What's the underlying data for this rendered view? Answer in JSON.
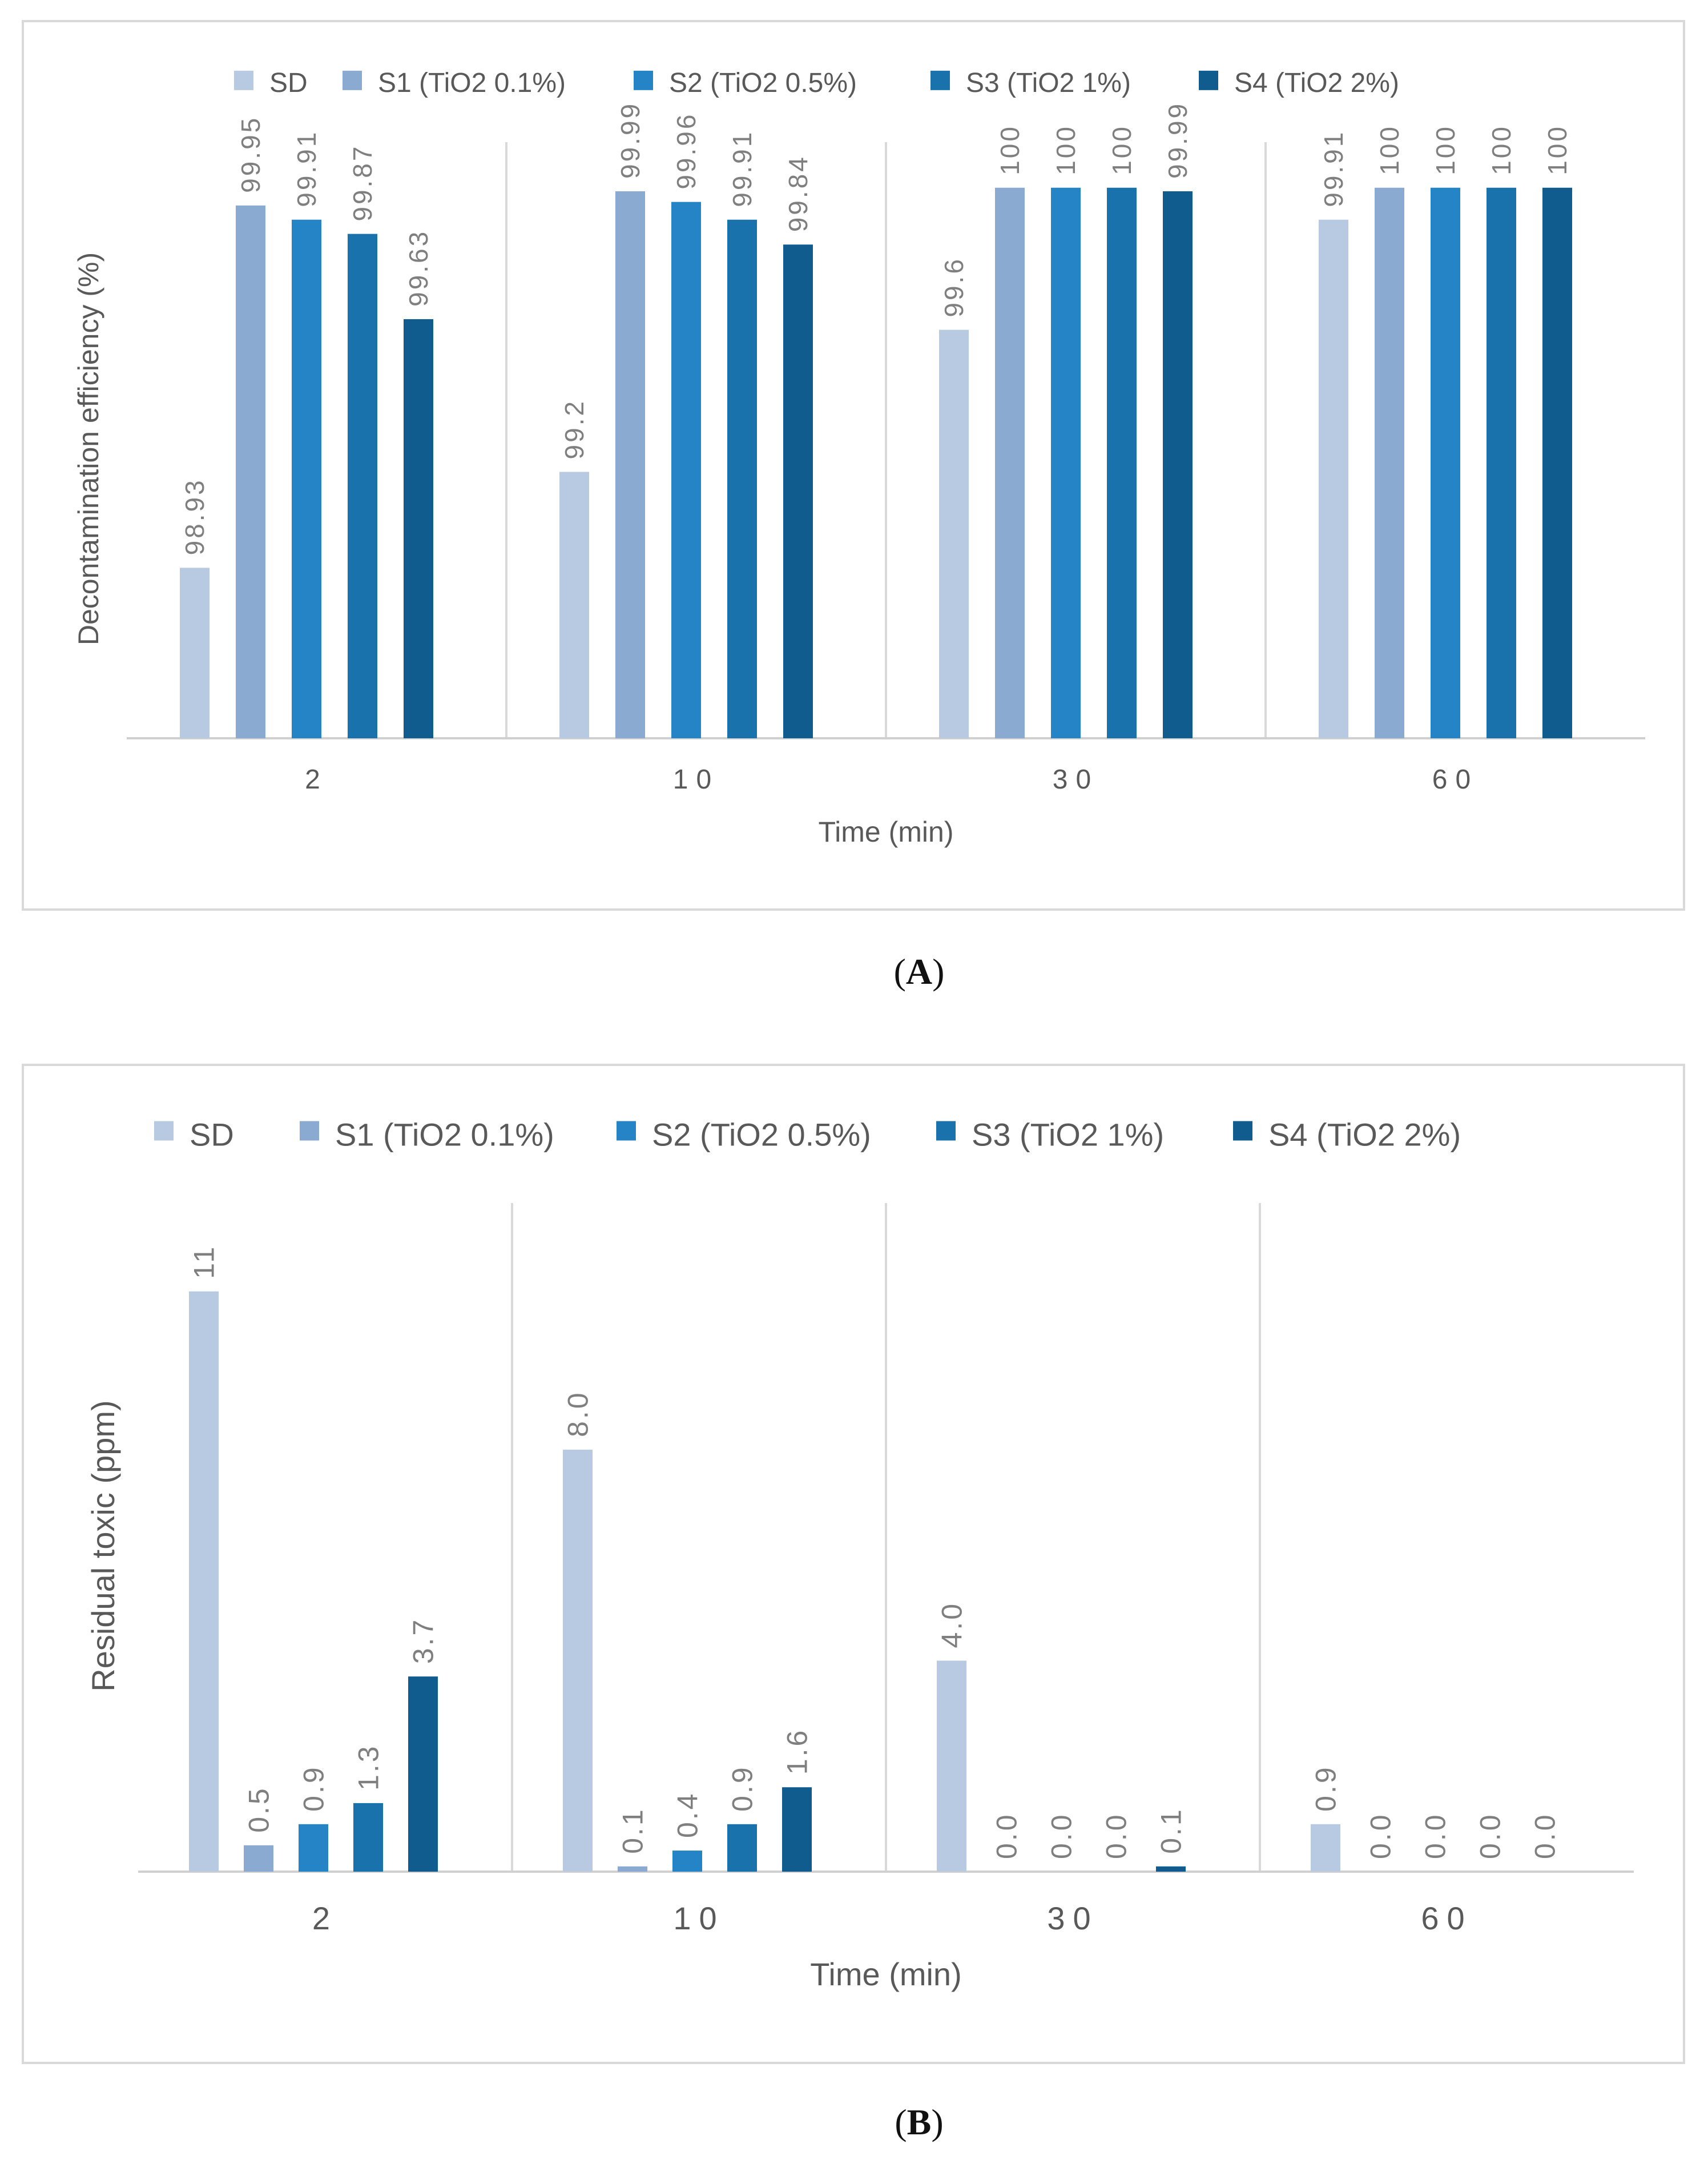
{
  "series_colors": [
    "#b8cae2",
    "#8aaad2",
    "#2584c6",
    "#1a72ad",
    "#105c8e"
  ],
  "chart_data": [
    {
      "panel": "A",
      "caption_letter": "A",
      "type": "bar",
      "categories": [
        "2",
        "10",
        "30",
        "60"
      ],
      "xlabel": "Time (min)",
      "ylabel": "Decontamination efficiency (%)",
      "ylim": [
        98.45,
        100.08
      ],
      "gridlines": "vertical category separators",
      "legend_position": "top",
      "series": [
        {
          "name": "SD",
          "values": [
            98.93,
            99.2,
            99.6,
            99.91
          ],
          "labels": [
            "98.93",
            "99.2",
            "99.6",
            "99.91"
          ]
        },
        {
          "name": "S1 (TiO2 0.1%)",
          "values": [
            99.95,
            99.99,
            100,
            100
          ],
          "labels": [
            "99.95",
            "99.99",
            "100",
            "100"
          ]
        },
        {
          "name": "S2 (TiO2 0.5%)",
          "values": [
            99.91,
            99.96,
            100,
            100
          ],
          "labels": [
            "99.91",
            "99.96",
            "100",
            "100"
          ]
        },
        {
          "name": "S3 (TiO2 1%)",
          "values": [
            99.87,
            99.91,
            100,
            100
          ],
          "labels": [
            "99.87",
            "99.91",
            "100",
            "100"
          ]
        },
        {
          "name": "S4 (TiO2 2%)",
          "values": [
            99.63,
            99.84,
            99.99,
            100
          ],
          "labels": [
            "99.63",
            "99.84",
            "99.99",
            "100"
          ]
        }
      ]
    },
    {
      "panel": "B",
      "caption_letter": "B",
      "type": "bar",
      "categories": [
        "2",
        "10",
        "30",
        "60"
      ],
      "xlabel": "Time (min)",
      "ylabel": "Residual toxic (ppm)",
      "ylim": [
        0,
        12.35
      ],
      "gridlines": "vertical category separators",
      "legend_position": "top",
      "series": [
        {
          "name": "SD",
          "values": [
            11,
            8.0,
            4.0,
            0.9
          ],
          "labels": [
            "11",
            "8.0",
            "4.0",
            "0.9"
          ]
        },
        {
          "name": "S1 (TiO2 0.1%)",
          "values": [
            0.5,
            0.1,
            0.0,
            0.0
          ],
          "labels": [
            "0.5",
            "0.1",
            "0.0",
            "0.0"
          ]
        },
        {
          "name": "S2 (TiO2 0.5%)",
          "values": [
            0.9,
            0.4,
            0.0,
            0.0
          ],
          "labels": [
            "0.9",
            "0.4",
            "0.0",
            "0.0"
          ]
        },
        {
          "name": "S3 (TiO2 1%)",
          "values": [
            1.3,
            0.9,
            0.0,
            0.0
          ],
          "labels": [
            "1.3",
            "0.9",
            "0.0",
            "0.0"
          ]
        },
        {
          "name": "S4 (TiO2 2%)",
          "values": [
            3.7,
            1.6,
            0.1,
            0.0
          ],
          "labels": [
            "3.7",
            "1.6",
            "0.1",
            "0.0"
          ]
        }
      ]
    }
  ]
}
